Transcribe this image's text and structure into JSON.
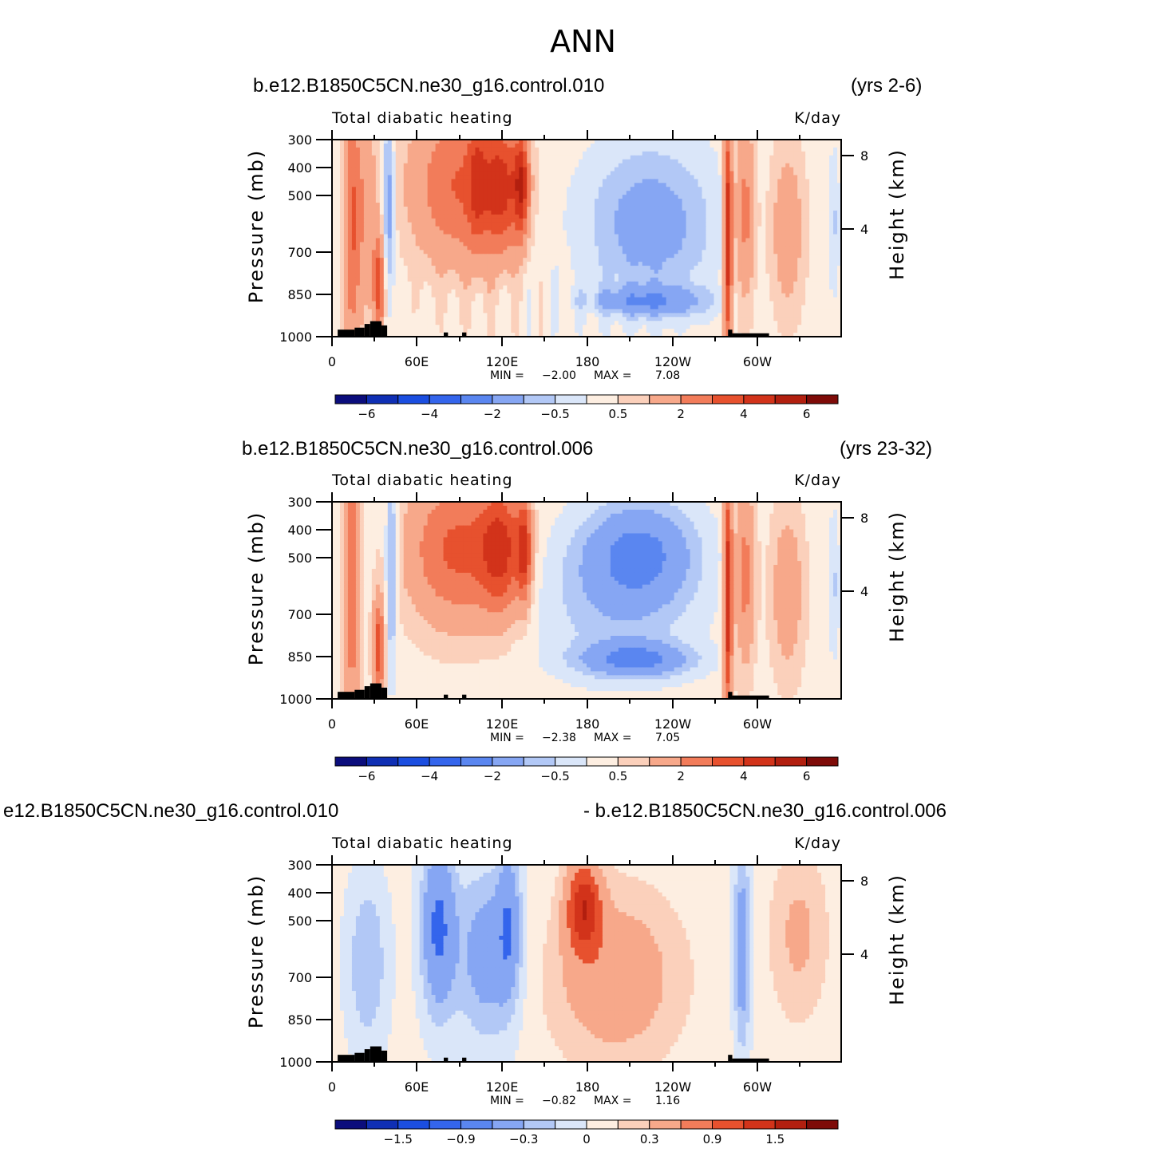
{
  "title": "ANN",
  "colors": {
    "ramp": [
      "#0b0d7c",
      "#0f2fb4",
      "#1b4ee0",
      "#3465ec",
      "#5a86f0",
      "#86a6f3",
      "#b2c8f6",
      "#dae6f9",
      "#fdeee1",
      "#fbd0bb",
      "#f7a88a",
      "#f27c5a",
      "#e7512e",
      "#d2331a",
      "#b21f0f",
      "#7e0b08"
    ],
    "land": "#000000"
  },
  "chart_data": [
    {
      "type": "heatmap",
      "case_left": "b.e12.B1850C5CN.ne30_g16.control.010",
      "case_right": "(yrs 2-6)",
      "variable": "Total diabatic heating",
      "units": "K/day",
      "ylabel": "Pressure (mb)",
      "ylabel_right": "Height (km)",
      "x_ticks": [
        "0",
        "60E",
        "120E",
        "180",
        "120W",
        "60W"
      ],
      "y_ticks": [
        "300",
        "400",
        "500",
        "700",
        "850",
        "1000"
      ],
      "y_right_ticks": [
        "8",
        "4"
      ],
      "min_label": "MIN =",
      "min_value": "−2.00",
      "max_label": "MAX =",
      "max_value": "7.08",
      "colorbar_labels": [
        "−6",
        "−4",
        "−2",
        "−0.5",
        "0.5",
        "2",
        "4",
        "6"
      ]
    },
    {
      "type": "heatmap",
      "case_left": "b.e12.B1850C5CN.ne30_g16.control.006",
      "case_right": "(yrs 23-32)",
      "variable": "Total diabatic heating",
      "units": "K/day",
      "ylabel": "Pressure (mb)",
      "ylabel_right": "Height (km)",
      "x_ticks": [
        "0",
        "60E",
        "120E",
        "180",
        "120W",
        "60W"
      ],
      "y_ticks": [
        "300",
        "400",
        "500",
        "700",
        "850",
        "1000"
      ],
      "y_right_ticks": [
        "8",
        "4"
      ],
      "min_label": "MIN =",
      "min_value": "−2.38",
      "max_label": "MAX =",
      "max_value": "7.05",
      "colorbar_labels": [
        "−6",
        "−4",
        "−2",
        "−0.5",
        "0.5",
        "2",
        "4",
        "6"
      ]
    },
    {
      "type": "heatmap",
      "case_left": "e12.B1850C5CN.ne30_g16.control.010",
      "case_right": "- b.e12.B1850C5CN.ne30_g16.control.006",
      "variable": "Total diabatic heating",
      "units": "K/day",
      "ylabel": "Pressure (mb)",
      "ylabel_right": "Height (km)",
      "x_ticks": [
        "0",
        "60E",
        "120E",
        "180",
        "120W",
        "60W"
      ],
      "y_ticks": [
        "300",
        "400",
        "500",
        "700",
        "850",
        "1000"
      ],
      "y_right_ticks": [
        "8",
        "4"
      ],
      "min_label": "MIN =",
      "min_value": "−0.82",
      "max_label": "MAX =",
      "max_value": "1.16",
      "colorbar_labels": [
        "−1.5",
        "−0.9",
        "−0.3",
        "0",
        "0.3",
        "0.9",
        "1.5"
      ]
    }
  ]
}
